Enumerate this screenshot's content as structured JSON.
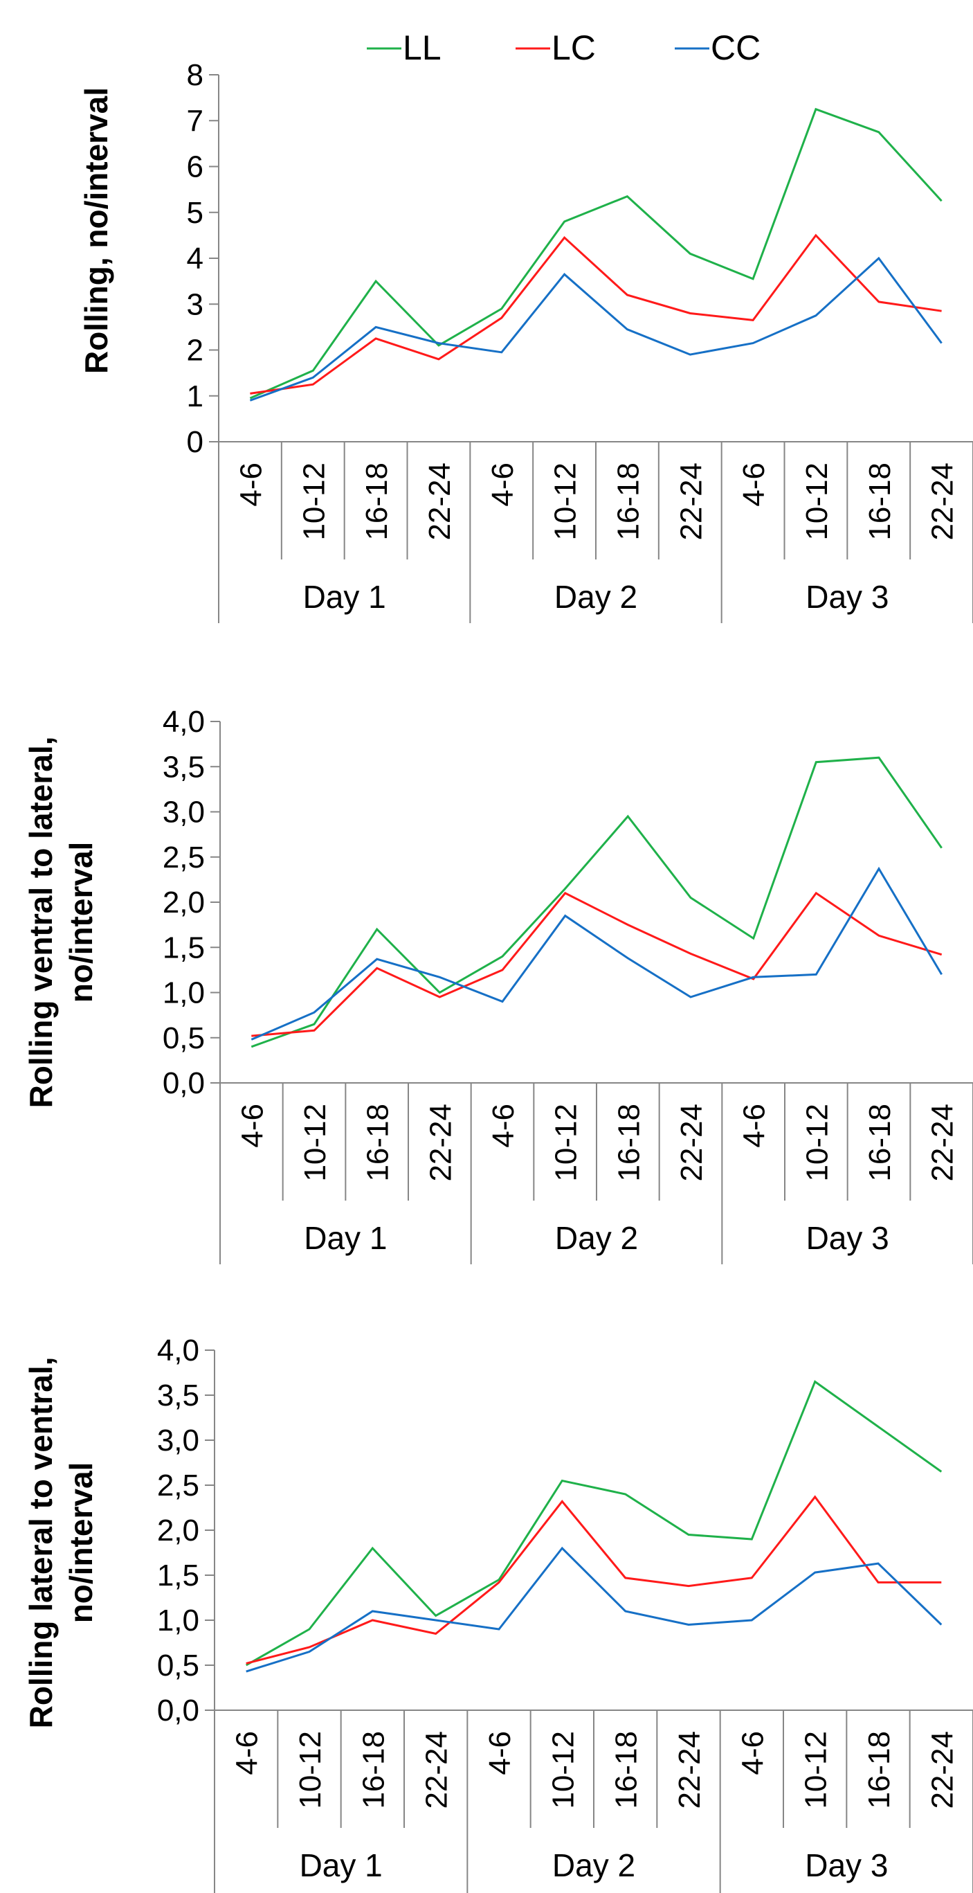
{
  "legend": [
    {
      "name": "LL",
      "color": "#1fb14a"
    },
    {
      "name": "LC",
      "color": "#ff1a1a"
    },
    {
      "name": "CC",
      "color": "#1670c6"
    }
  ],
  "chart_data": [
    {
      "type": "line",
      "ylabel": [
        "Rolling, no/interval"
      ],
      "ylim": [
        0,
        8
      ],
      "yticks": [
        "0",
        "1",
        "2",
        "3",
        "4",
        "5",
        "6",
        "7",
        "8"
      ],
      "categories": [
        "4-6",
        "10-12",
        "16-18",
        "22-24",
        "4-6",
        "10-12",
        "16-18",
        "22-24",
        "4-6",
        "10-12",
        "16-18",
        "22-24"
      ],
      "groups": [
        "Day 1",
        "Day 2",
        "Day 3"
      ],
      "series": [
        {
          "name": "LL",
          "color": "#1fb14a",
          "values": [
            0.95,
            1.55,
            3.5,
            2.1,
            2.9,
            4.8,
            5.35,
            4.1,
            3.55,
            7.25,
            6.75,
            5.25
          ]
        },
        {
          "name": "LC",
          "color": "#ff1a1a",
          "values": [
            1.05,
            1.25,
            2.25,
            1.8,
            2.7,
            4.45,
            3.2,
            2.8,
            2.65,
            4.5,
            3.05,
            2.85
          ]
        },
        {
          "name": "CC",
          "color": "#1670c6",
          "values": [
            0.9,
            1.4,
            2.5,
            2.15,
            1.95,
            3.65,
            2.45,
            1.9,
            2.15,
            2.75,
            4.0,
            2.15
          ]
        }
      ]
    },
    {
      "type": "line",
      "ylabel": [
        "Rolling ventral to lateral,",
        "no/interval"
      ],
      "ylim": [
        0,
        4
      ],
      "yticks": [
        "0,0",
        "0,5",
        "1,0",
        "1,5",
        "2,0",
        "2,5",
        "3,0",
        "3,5",
        "4,0"
      ],
      "categories": [
        "4-6",
        "10-12",
        "16-18",
        "22-24",
        "4-6",
        "10-12",
        "16-18",
        "22-24",
        "4-6",
        "10-12",
        "16-18",
        "22-24"
      ],
      "groups": [
        "Day 1",
        "Day 2",
        "Day 3"
      ],
      "series": [
        {
          "name": "LL",
          "color": "#1fb14a",
          "values": [
            0.4,
            0.65,
            1.7,
            1.0,
            1.4,
            2.15,
            2.95,
            2.05,
            1.6,
            3.55,
            3.6,
            2.6
          ]
        },
        {
          "name": "LC",
          "color": "#ff1a1a",
          "values": [
            0.52,
            0.58,
            1.27,
            0.95,
            1.25,
            2.1,
            1.75,
            1.43,
            1.15,
            2.1,
            1.63,
            1.42
          ]
        },
        {
          "name": "CC",
          "color": "#1670c6",
          "values": [
            0.48,
            0.78,
            1.37,
            1.17,
            0.9,
            1.85,
            1.38,
            0.95,
            1.17,
            1.2,
            2.37,
            1.2
          ]
        }
      ]
    },
    {
      "type": "line",
      "ylabel": [
        "Rolling lateral to ventral,",
        "no/interval"
      ],
      "ylim": [
        0,
        4
      ],
      "yticks": [
        "0,0",
        "0,5",
        "1,0",
        "1,5",
        "2,0",
        "2,5",
        "3,0",
        "3,5",
        "4,0"
      ],
      "categories": [
        "4-6",
        "10-12",
        "16-18",
        "22-24",
        "4-6",
        "10-12",
        "16-18",
        "22-24",
        "4-6",
        "10-12",
        "16-18",
        "22-24"
      ],
      "groups": [
        "Day 1",
        "Day 2",
        "Day 3"
      ],
      "series": [
        {
          "name": "LL",
          "color": "#1fb14a",
          "values": [
            0.5,
            0.9,
            1.8,
            1.05,
            1.45,
            2.55,
            2.4,
            1.95,
            1.9,
            3.65,
            3.15,
            2.65
          ]
        },
        {
          "name": "LC",
          "color": "#ff1a1a",
          "values": [
            0.52,
            0.7,
            1.0,
            0.85,
            1.42,
            2.32,
            1.47,
            1.38,
            1.47,
            2.37,
            1.42,
            1.42
          ]
        },
        {
          "name": "CC",
          "color": "#1670c6",
          "values": [
            0.43,
            0.65,
            1.1,
            1.0,
            0.9,
            1.8,
            1.1,
            0.95,
            1.0,
            1.53,
            1.63,
            0.95
          ]
        }
      ]
    }
  ]
}
